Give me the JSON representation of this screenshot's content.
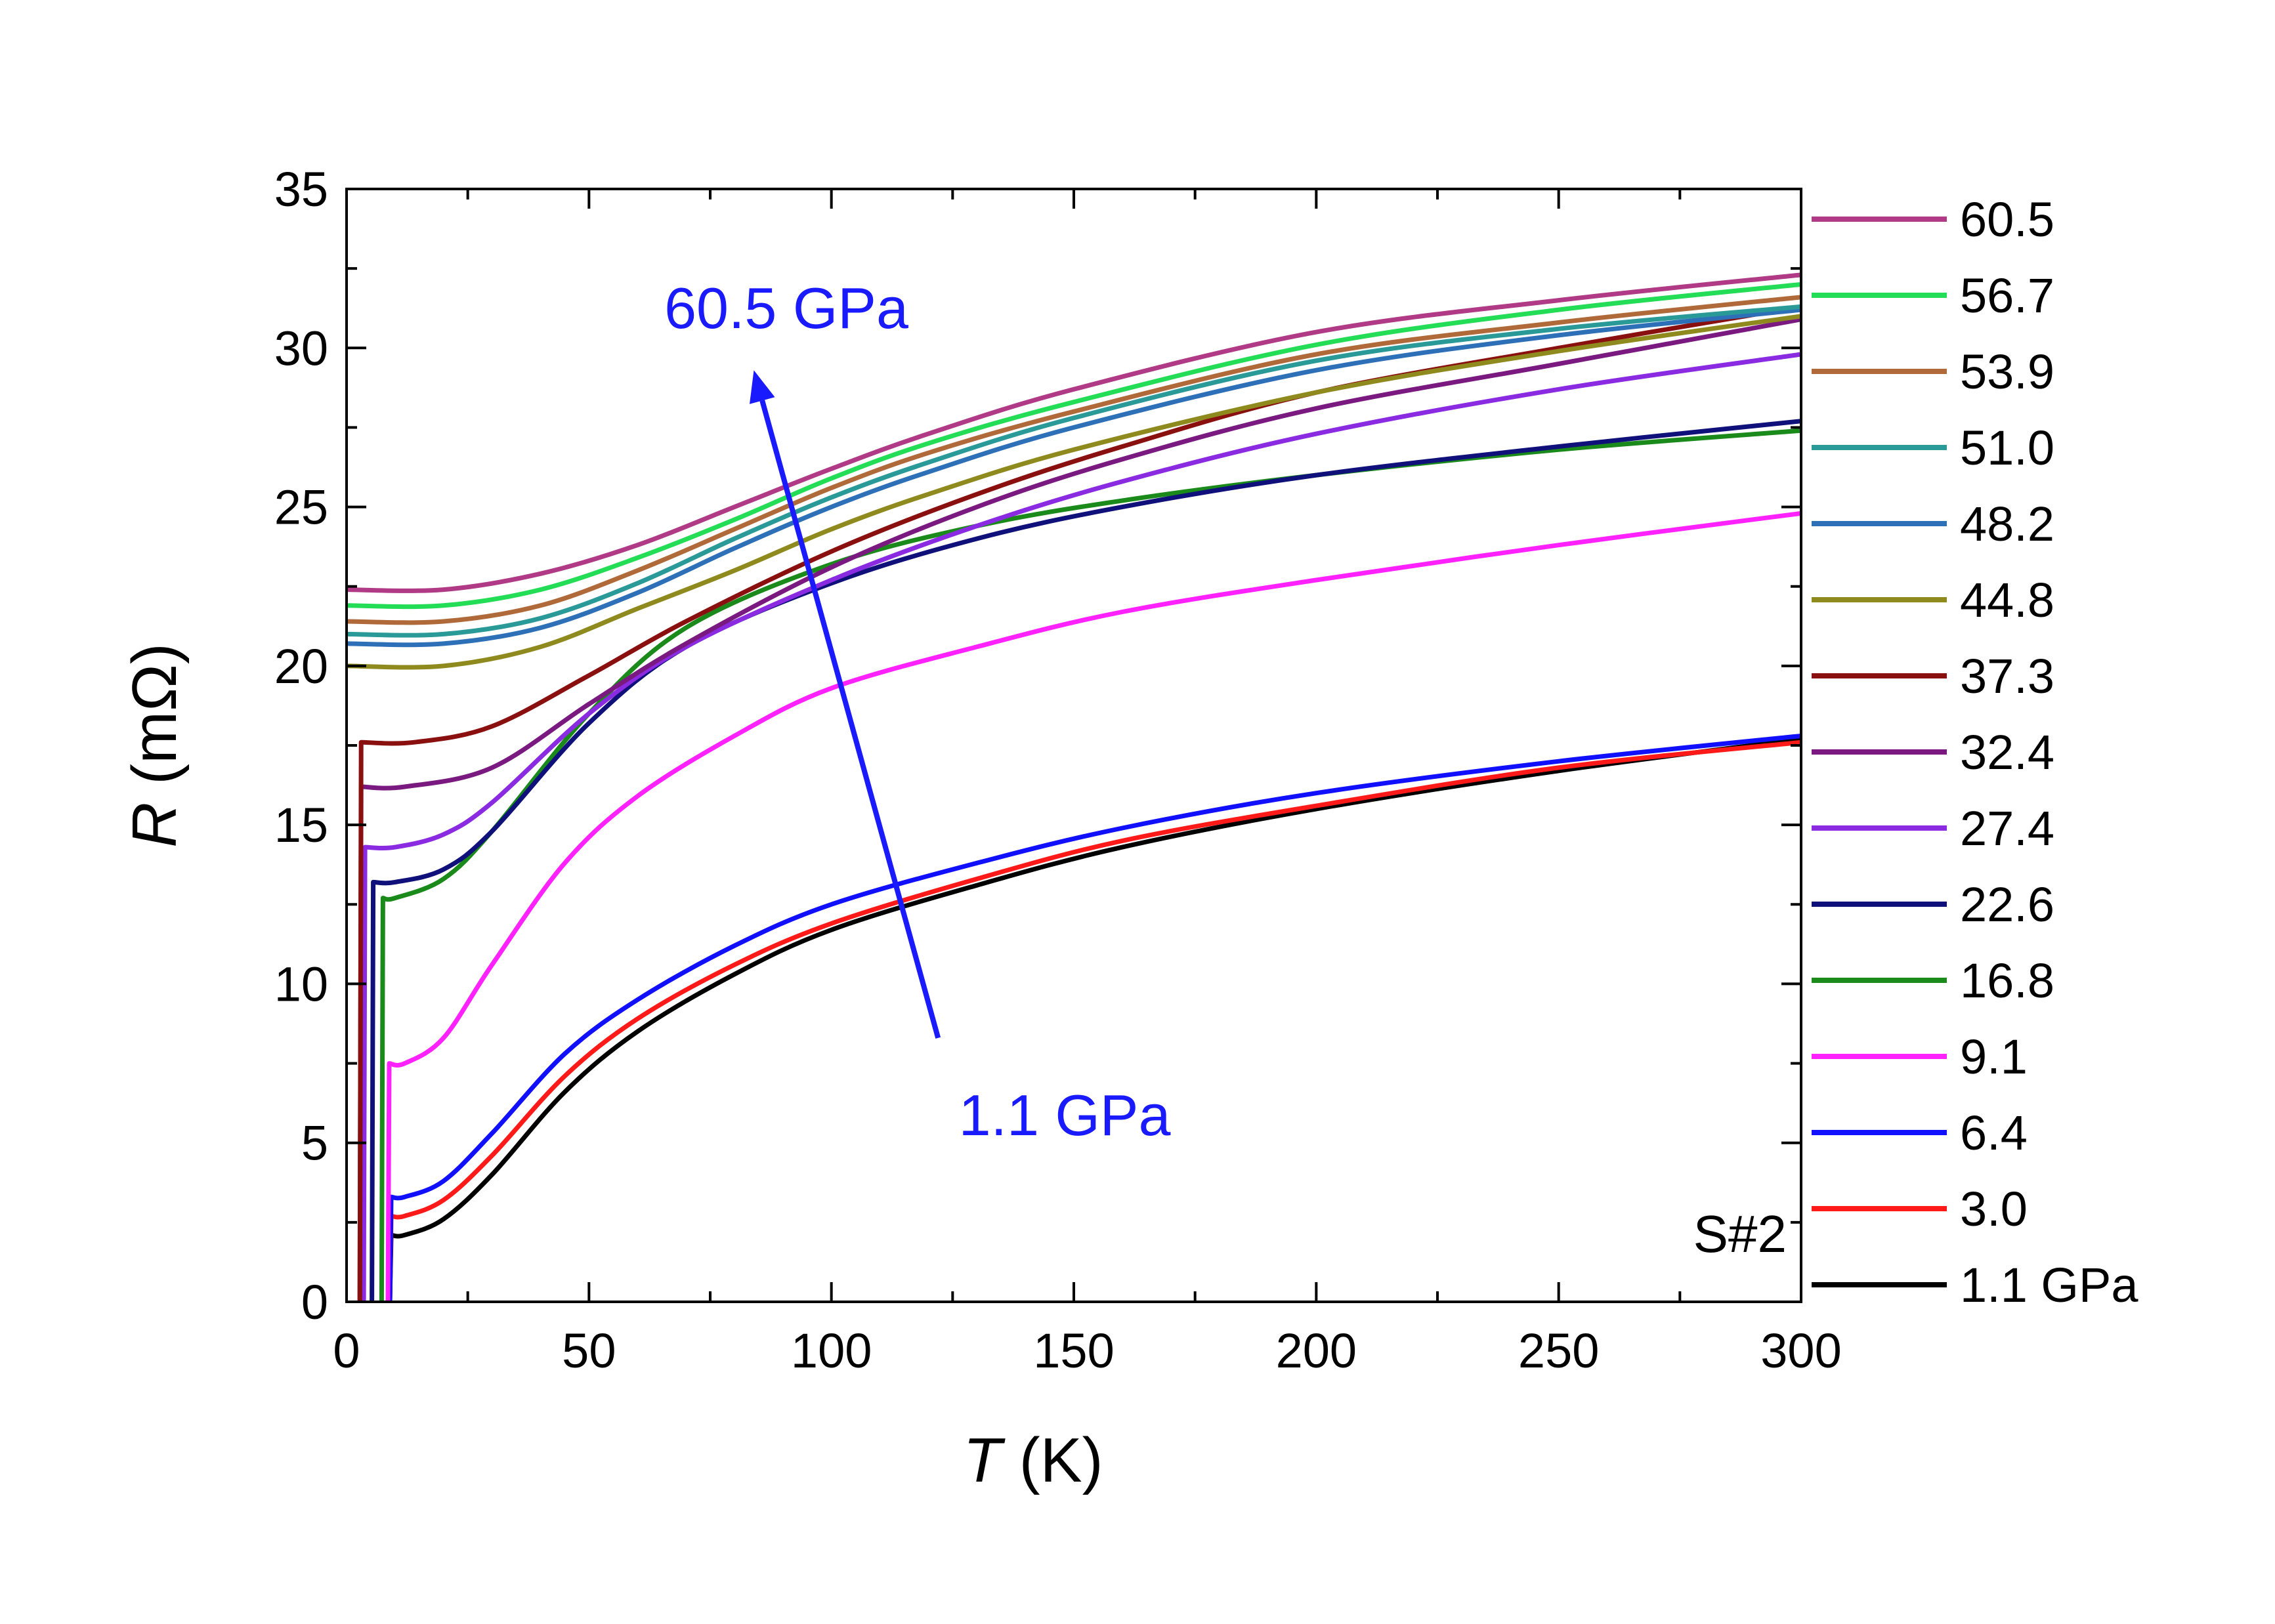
{
  "chart_data": {
    "type": "line",
    "xlabel_var": "T",
    "xlabel_unit": " (K)",
    "ylabel_var": "R",
    "ylabel_unit": " (mΩ)",
    "xlim": [
      0,
      300
    ],
    "ylim": [
      0,
      35
    ],
    "xticks": [
      0,
      50,
      100,
      150,
      200,
      250,
      300
    ],
    "yticks": [
      0,
      5,
      10,
      15,
      20,
      25,
      30,
      35
    ],
    "grid": false,
    "legend_position": "right-outside",
    "sample_label": "S#2",
    "annotations": {
      "arrow_top": "60.5 GPa",
      "arrow_bottom": "1.1 GPa",
      "arrow_color": "#1a1aff",
      "arrow_start": [
        122,
        8.3
      ],
      "arrow_end": [
        84,
        29.3
      ]
    },
    "series": [
      {
        "name": "60.5",
        "color": "#b03a86",
        "tc": 0,
        "r0": 22.4,
        "flat": 18,
        "x": [
          0,
          20,
          40,
          60,
          80,
          100,
          120,
          150,
          200,
          250,
          300
        ],
        "y": [
          22.4,
          22.4,
          22.9,
          23.8,
          25.0,
          26.2,
          27.3,
          28.7,
          30.5,
          31.5,
          32.3
        ]
      },
      {
        "name": "56.7",
        "color": "#22dd55",
        "tc": 0,
        "r0": 21.9,
        "flat": 18,
        "x": [
          0,
          20,
          40,
          60,
          80,
          100,
          120,
          150,
          200,
          250,
          300
        ],
        "y": [
          21.9,
          21.9,
          22.4,
          23.4,
          24.6,
          25.9,
          27.0,
          28.3,
          30.1,
          31.2,
          32.0
        ]
      },
      {
        "name": "53.9",
        "color": "#b06a3a",
        "tc": 0,
        "r0": 21.4,
        "flat": 18,
        "x": [
          0,
          20,
          40,
          60,
          80,
          100,
          120,
          150,
          200,
          250,
          300
        ],
        "y": [
          21.4,
          21.4,
          21.9,
          23.0,
          24.3,
          25.6,
          26.7,
          28.0,
          29.8,
          30.8,
          31.6
        ]
      },
      {
        "name": "51.0",
        "color": "#2a9a98",
        "tc": 0,
        "r0": 21.0,
        "flat": 18,
        "x": [
          0,
          20,
          40,
          60,
          80,
          100,
          120,
          150,
          200,
          250,
          300
        ],
        "y": [
          21.0,
          21.0,
          21.5,
          22.6,
          24.0,
          25.3,
          26.4,
          27.8,
          29.6,
          30.6,
          31.3
        ]
      },
      {
        "name": "48.2",
        "color": "#2e70b8",
        "tc": 0,
        "r0": 20.7,
        "flat": 18,
        "x": [
          0,
          20,
          40,
          60,
          80,
          100,
          120,
          150,
          200,
          250,
          300
        ],
        "y": [
          20.7,
          20.7,
          21.2,
          22.3,
          23.7,
          25.0,
          26.1,
          27.5,
          29.3,
          30.4,
          31.2
        ]
      },
      {
        "name": "44.8",
        "color": "#8f8a1e",
        "tc": 0,
        "r0": 20.0,
        "flat": 18,
        "x": [
          0,
          20,
          40,
          60,
          80,
          100,
          120,
          150,
          200,
          250,
          300
        ],
        "y": [
          20.0,
          20.0,
          20.6,
          21.8,
          23.0,
          24.3,
          25.4,
          26.8,
          28.6,
          29.9,
          31.0
        ]
      },
      {
        "name": "37.3",
        "color": "#8a1010",
        "tc": 3.0,
        "r0": 17.6,
        "flat": 14,
        "x": [
          3,
          14,
          30,
          50,
          70,
          100,
          130,
          160,
          200,
          250,
          300
        ],
        "y": [
          17.6,
          17.6,
          18.1,
          19.7,
          21.4,
          23.6,
          25.4,
          26.9,
          28.6,
          30.0,
          31.3
        ]
      },
      {
        "name": "32.4",
        "color": "#7a1a80",
        "tc": 3.0,
        "r0": 16.2,
        "flat": 12,
        "x": [
          3,
          12,
          30,
          50,
          70,
          100,
          130,
          160,
          200,
          250,
          300
        ],
        "y": [
          16.2,
          16.2,
          16.8,
          18.8,
          20.7,
          23.1,
          25.0,
          26.5,
          28.1,
          29.5,
          30.9
        ]
      },
      {
        "name": "27.4",
        "color": "#8a2be2",
        "tc": 3.8,
        "r0": 14.3,
        "flat": 10,
        "x": [
          3.8,
          10,
          20,
          30,
          50,
          70,
          100,
          130,
          160,
          200,
          250,
          300
        ],
        "y": [
          14.3,
          14.3,
          14.7,
          15.7,
          18.5,
          20.6,
          22.7,
          24.4,
          25.8,
          27.3,
          28.7,
          29.8
        ]
      },
      {
        "name": "22.6",
        "color": "#10107a",
        "tc": 5.5,
        "r0": 13.2,
        "flat": 10,
        "x": [
          5.5,
          10,
          20,
          30,
          50,
          70,
          100,
          130,
          160,
          200,
          250,
          300
        ],
        "y": [
          13.2,
          13.2,
          13.6,
          14.8,
          18.2,
          20.6,
          22.6,
          24.0,
          25.0,
          26.0,
          26.9,
          27.7
        ]
      },
      {
        "name": "16.8",
        "color": "#1a8a1a",
        "tc": 7.5,
        "r0": 12.7,
        "flat": 10,
        "x": [
          7.5,
          10,
          20,
          30,
          50,
          70,
          100,
          130,
          160,
          200,
          250,
          300
        ],
        "y": [
          12.7,
          12.7,
          13.3,
          14.8,
          18.5,
          21.2,
          23.2,
          24.4,
          25.2,
          26.0,
          26.8,
          27.4
        ]
      },
      {
        "name": "9.1",
        "color": "#ff22ff",
        "tc": 8.8,
        "r0": 7.5,
        "flat": 12,
        "x": [
          8.8,
          12,
          20,
          30,
          45,
          60,
          80,
          100,
          130,
          160,
          200,
          250,
          300
        ],
        "y": [
          7.5,
          7.5,
          8.3,
          10.6,
          13.8,
          15.9,
          17.8,
          19.3,
          20.6,
          21.7,
          22.7,
          23.8,
          24.8
        ]
      },
      {
        "name": "6.4",
        "color": "#1010ff",
        "tc": 9.2,
        "r0": 3.3,
        "flat": 12,
        "x": [
          9.2,
          12,
          20,
          30,
          45,
          60,
          80,
          100,
          130,
          160,
          200,
          250,
          300
        ],
        "y": [
          3.3,
          3.3,
          3.8,
          5.3,
          7.8,
          9.5,
          11.2,
          12.5,
          13.8,
          14.9,
          16.0,
          17.0,
          17.8
        ]
      },
      {
        "name": "3.0",
        "color": "#ff1a1a",
        "tc": 9.2,
        "r0": 2.7,
        "flat": 12,
        "x": [
          9.2,
          12,
          20,
          30,
          45,
          60,
          80,
          100,
          130,
          160,
          200,
          250,
          300
        ],
        "y": [
          2.7,
          2.7,
          3.2,
          4.6,
          7.1,
          8.9,
          10.6,
          11.9,
          13.3,
          14.5,
          15.6,
          16.8,
          17.6
        ]
      },
      {
        "name": "1.1 GPa",
        "color": "#000000",
        "tc": 9.2,
        "r0": 2.1,
        "flat": 12,
        "x": [
          9.2,
          12,
          20,
          30,
          45,
          60,
          80,
          100,
          130,
          160,
          200,
          250,
          300
        ],
        "y": [
          2.1,
          2.1,
          2.6,
          4.0,
          6.6,
          8.5,
          10.3,
          11.7,
          13.1,
          14.3,
          15.5,
          16.7,
          17.7
        ]
      }
    ]
  }
}
